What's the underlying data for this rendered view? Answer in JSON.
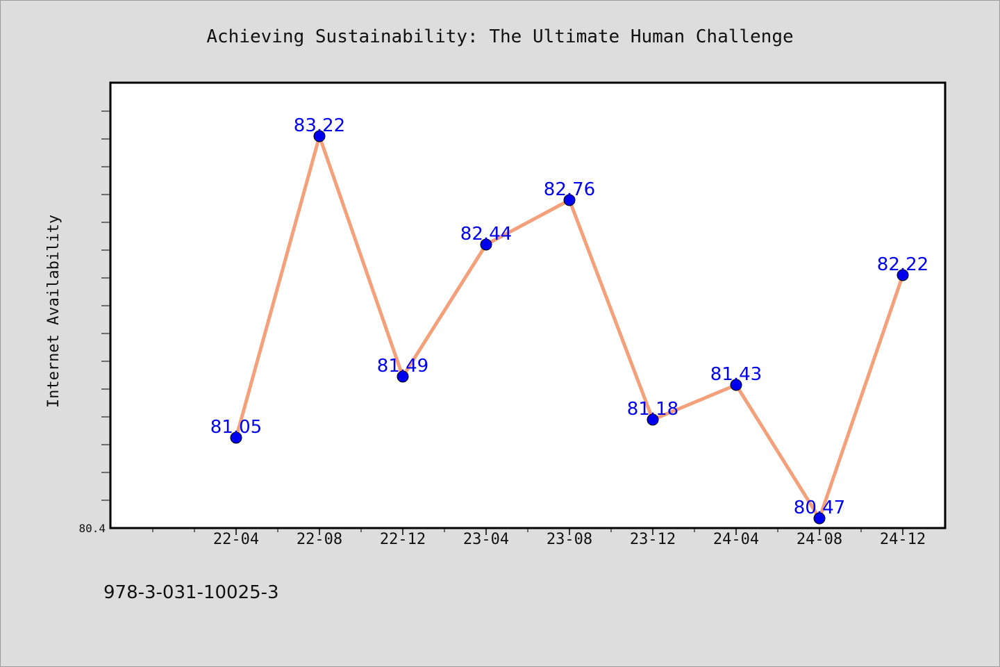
{
  "chart_data": {
    "type": "line",
    "title": "Achieving Sustainability: The Ultimate Human Challenge",
    "xlabel": "",
    "ylabel": "Internet Availability",
    "categories": [
      "22-04",
      "22-08",
      "22-12",
      "23-04",
      "23-08",
      "23-12",
      "24-04",
      "24-08",
      "24-12"
    ],
    "series": [
      {
        "values": [
          81.05,
          83.22,
          81.49,
          82.44,
          82.76,
          81.18,
          81.43,
          80.47,
          82.22
        ],
        "labels": [
          "81.05",
          "83.22",
          "81.49",
          "82.44",
          "82.76",
          "81.18",
          "81.43",
          "80.47",
          "82.22"
        ]
      }
    ],
    "ylim": [
      80.4,
      83.6
    ],
    "ytick_labels": [
      "80.4"
    ],
    "grid": false,
    "colors": {
      "line": "#f4a07a",
      "marker": "#0000ee",
      "label": "#0000ee",
      "background": "#dddddd",
      "plot_background": "#ffffff"
    }
  },
  "footer": {
    "isbn": "978-3-031-10025-3"
  }
}
